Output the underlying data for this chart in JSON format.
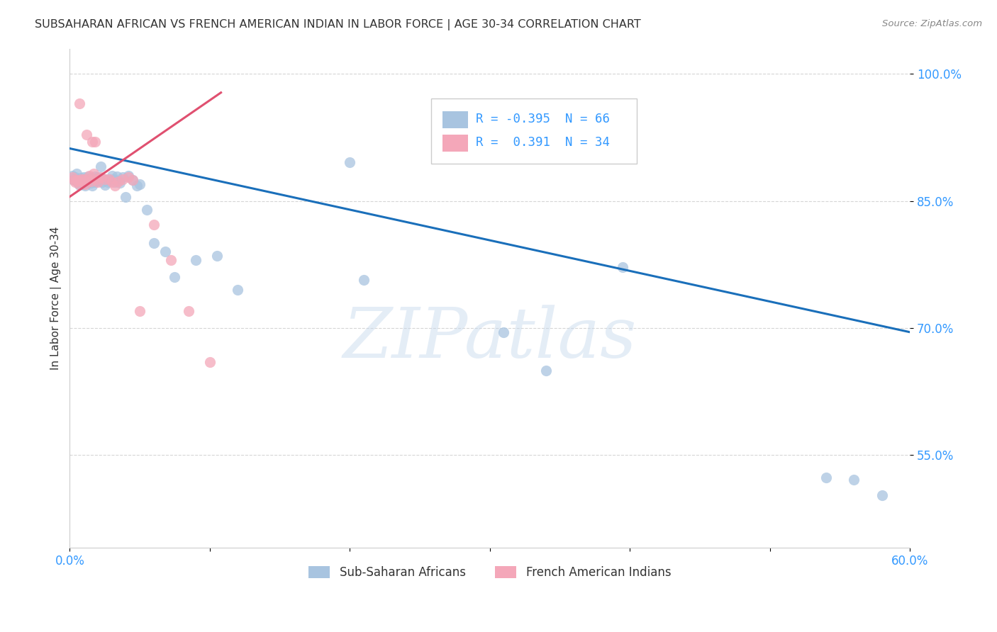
{
  "title": "SUBSAHARAN AFRICAN VS FRENCH AMERICAN INDIAN IN LABOR FORCE | AGE 30-34 CORRELATION CHART",
  "source": "Source: ZipAtlas.com",
  "ylabel": "In Labor Force | Age 30-34",
  "xlim": [
    0.0,
    0.6
  ],
  "ylim": [
    0.44,
    1.03
  ],
  "x_ticks": [
    0.0,
    0.1,
    0.2,
    0.3,
    0.4,
    0.5,
    0.6
  ],
  "x_ticklabels": [
    "0.0%",
    "",
    "",
    "",
    "",
    "",
    "60.0%"
  ],
  "y_ticks": [
    0.55,
    0.7,
    0.85,
    1.0
  ],
  "y_ticklabels": [
    "55.0%",
    "70.0%",
    "85.0%",
    "100.0%"
  ],
  "blue_color": "#a8c4e0",
  "pink_color": "#f4a7b9",
  "blue_line_color": "#1a6fba",
  "pink_line_color": "#e05070",
  "grid_color": "#cccccc",
  "watermark": "ZIPatlas",
  "blue_scatter_x": [
    0.002,
    0.003,
    0.004,
    0.005,
    0.005,
    0.006,
    0.006,
    0.007,
    0.007,
    0.008,
    0.008,
    0.009,
    0.009,
    0.01,
    0.01,
    0.011,
    0.011,
    0.012,
    0.012,
    0.013,
    0.013,
    0.014,
    0.015,
    0.015,
    0.016,
    0.016,
    0.017,
    0.018,
    0.018,
    0.019,
    0.02,
    0.021,
    0.022,
    0.023,
    0.025,
    0.025,
    0.026,
    0.027,
    0.028,
    0.03,
    0.031,
    0.032,
    0.034,
    0.035,
    0.036,
    0.038,
    0.04,
    0.042,
    0.045,
    0.048,
    0.05,
    0.055,
    0.06,
    0.068,
    0.075,
    0.09,
    0.105,
    0.12,
    0.2,
    0.21,
    0.31,
    0.34,
    0.395,
    0.54,
    0.56,
    0.58
  ],
  "blue_scatter_y": [
    0.88,
    0.875,
    0.878,
    0.882,
    0.874,
    0.876,
    0.871,
    0.873,
    0.869,
    0.877,
    0.872,
    0.876,
    0.87,
    0.878,
    0.873,
    0.875,
    0.868,
    0.876,
    0.872,
    0.879,
    0.875,
    0.873,
    0.877,
    0.871,
    0.874,
    0.868,
    0.876,
    0.879,
    0.872,
    0.876,
    0.878,
    0.874,
    0.891,
    0.872,
    0.876,
    0.869,
    0.875,
    0.872,
    0.876,
    0.88,
    0.876,
    0.872,
    0.879,
    0.874,
    0.871,
    0.878,
    0.855,
    0.88,
    0.875,
    0.868,
    0.87,
    0.84,
    0.8,
    0.79,
    0.76,
    0.78,
    0.785,
    0.745,
    0.896,
    0.757,
    0.695,
    0.65,
    0.772,
    0.523,
    0.521,
    0.502
  ],
  "pink_scatter_x": [
    0.002,
    0.003,
    0.004,
    0.005,
    0.006,
    0.007,
    0.007,
    0.008,
    0.009,
    0.01,
    0.011,
    0.012,
    0.013,
    0.014,
    0.015,
    0.016,
    0.017,
    0.018,
    0.019,
    0.02,
    0.022,
    0.025,
    0.028,
    0.03,
    0.032,
    0.035,
    0.038,
    0.042,
    0.045,
    0.05,
    0.06,
    0.072,
    0.085,
    0.1
  ],
  "pink_scatter_y": [
    0.878,
    0.875,
    0.872,
    0.875,
    0.874,
    0.87,
    0.965,
    0.876,
    0.873,
    0.876,
    0.87,
    0.928,
    0.876,
    0.88,
    0.873,
    0.92,
    0.882,
    0.92,
    0.876,
    0.872,
    0.878,
    0.876,
    0.876,
    0.872,
    0.868,
    0.873,
    0.876,
    0.878,
    0.875,
    0.72,
    0.822,
    0.78,
    0.72,
    0.66
  ],
  "blue_trendline_x": [
    0.0,
    0.6
  ],
  "blue_trendline_y": [
    0.912,
    0.695
  ],
  "pink_trendline_x": [
    0.0,
    0.108
  ],
  "pink_trendline_y": [
    0.855,
    0.978
  ]
}
